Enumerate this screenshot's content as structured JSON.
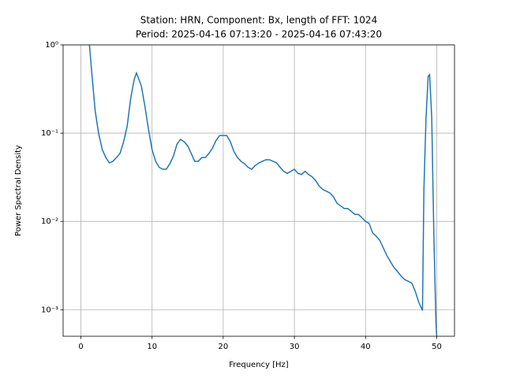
{
  "chart_data": {
    "type": "line",
    "title": [
      "Station: HRN, Component: Bx, length of FFT: 1024",
      "Period: 2025-04-16 07:13:20 - 2025-04-16 07:43:20"
    ],
    "xlabel": "Frequency [Hz]",
    "ylabel": "Power Spectral Density",
    "x": [
      1.2,
      1.5,
      2.0,
      2.5,
      3.0,
      3.5,
      4.0,
      4.5,
      5.0,
      5.5,
      6.0,
      6.5,
      7.0,
      7.5,
      7.8,
      8.0,
      8.5,
      9.0,
      9.5,
      10.0,
      10.5,
      11.0,
      11.5,
      12.0,
      12.5,
      13.0,
      13.5,
      14.0,
      14.5,
      15.0,
      15.5,
      16.0,
      16.5,
      17.0,
      17.5,
      18.0,
      18.5,
      19.0,
      19.5,
      20.0,
      20.5,
      21.0,
      21.5,
      22.0,
      22.5,
      23.0,
      23.5,
      24.0,
      24.5,
      25.0,
      25.5,
      26.0,
      26.5,
      27.0,
      27.5,
      28.0,
      28.5,
      29.0,
      29.5,
      30.0,
      30.5,
      31.0,
      31.5,
      32.0,
      32.5,
      33.0,
      33.5,
      34.0,
      34.5,
      35.0,
      35.5,
      36.0,
      36.5,
      37.0,
      37.5,
      38.0,
      38.5,
      39.0,
      39.5,
      40.0,
      40.5,
      41.0,
      41.5,
      42.0,
      42.5,
      43.0,
      43.5,
      44.0,
      44.5,
      45.0,
      45.5,
      46.0,
      46.5,
      47.0,
      47.5,
      48.0,
      48.2,
      48.5,
      48.8,
      49.0,
      49.3,
      49.6,
      49.9,
      50.0
    ],
    "series": [
      {
        "color": "#1f77b4",
        "values": [
          1.0,
          0.51,
          0.18,
          0.098,
          0.065,
          0.053,
          0.046,
          0.048,
          0.053,
          0.059,
          0.08,
          0.12,
          0.25,
          0.41,
          0.48,
          0.44,
          0.34,
          0.2,
          0.11,
          0.065,
          0.048,
          0.041,
          0.039,
          0.039,
          0.045,
          0.055,
          0.075,
          0.085,
          0.08,
          0.072,
          0.059,
          0.048,
          0.048,
          0.053,
          0.053,
          0.059,
          0.068,
          0.083,
          0.094,
          0.094,
          0.094,
          0.08,
          0.062,
          0.053,
          0.048,
          0.045,
          0.041,
          0.039,
          0.043,
          0.046,
          0.048,
          0.05,
          0.05,
          0.048,
          0.046,
          0.041,
          0.037,
          0.035,
          0.037,
          0.039,
          0.035,
          0.034,
          0.037,
          0.034,
          0.032,
          0.029,
          0.025,
          0.023,
          0.022,
          0.021,
          0.019,
          0.016,
          0.015,
          0.014,
          0.014,
          0.013,
          0.012,
          0.012,
          0.011,
          0.01,
          0.0095,
          0.0074,
          0.0068,
          0.0061,
          0.005,
          0.0041,
          0.0035,
          0.003,
          0.0027,
          0.0024,
          0.0022,
          0.0021,
          0.002,
          0.0016,
          0.0012,
          0.00098,
          0.023,
          0.15,
          0.44,
          0.46,
          0.15,
          0.0068,
          0.0007,
          0.0005
        ]
      }
    ],
    "xlim": [
      -2.5,
      52.5
    ],
    "xticks": [
      0,
      10,
      20,
      30,
      40,
      50
    ],
    "ylim": [
      0.0005,
      1
    ],
    "yscale": "log",
    "yticks": [
      {
        "value": 0.001,
        "label": "10⁻³"
      },
      {
        "value": 0.01,
        "label": "10⁻²"
      },
      {
        "value": 0.1,
        "label": "10⁻¹"
      },
      {
        "value": 1,
        "label": "10⁰"
      }
    ],
    "grid": true
  }
}
